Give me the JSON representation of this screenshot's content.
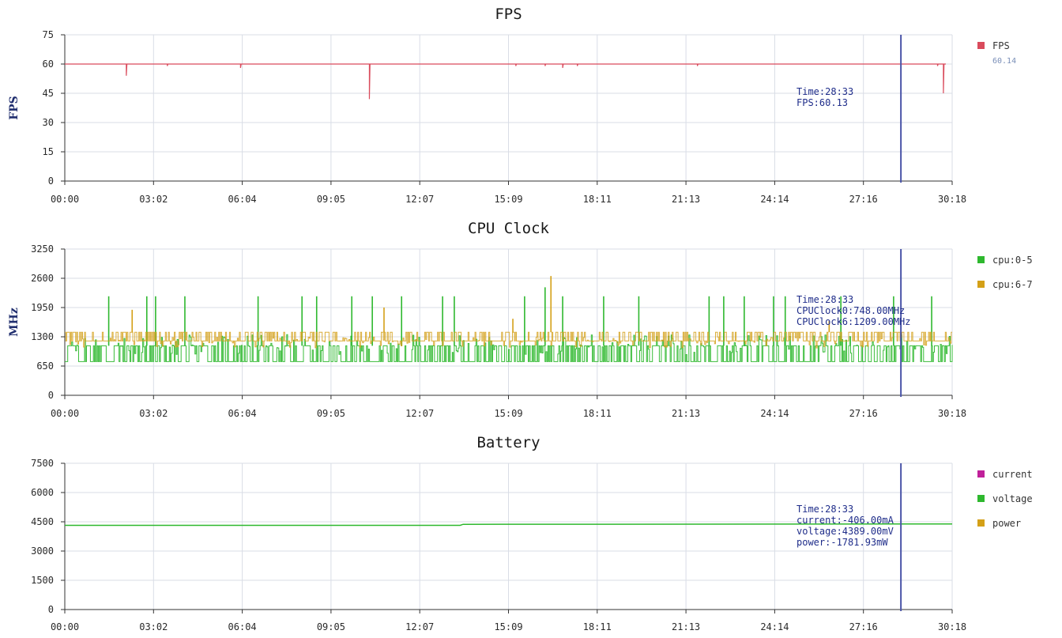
{
  "chart_data": [
    {
      "type": "line",
      "title": "FPS",
      "ylabel": "FPS",
      "ylim": [
        0,
        75
      ],
      "yticks": [
        "0",
        "15",
        "30",
        "45",
        "60",
        "75"
      ],
      "xticks": [
        "00:00",
        "03:02",
        "06:04",
        "09:05",
        "12:07",
        "15:09",
        "18:11",
        "21:13",
        "24:14",
        "27:16",
        "30:18"
      ],
      "x_range_min": [
        0,
        30.3
      ],
      "grid": true,
      "legend": "right",
      "series": [
        {
          "name": "FPS",
          "color": "#d94b5c",
          "baseline": 60,
          "dips": [
            [
              2.1,
              54
            ],
            [
              3.5,
              59
            ],
            [
              6.0,
              58
            ],
            [
              10.4,
              42
            ],
            [
              15.4,
              59
            ],
            [
              16.4,
              59
            ],
            [
              17.0,
              58
            ],
            [
              17.5,
              59
            ],
            [
              21.6,
              59
            ],
            [
              29.8,
              59
            ],
            [
              30.0,
              45
            ]
          ],
          "legend_value": "60.14"
        }
      ],
      "cursor": {
        "x_min": 28.55,
        "color": "#4a55a8",
        "lines": [
          "Time:28:33",
          "FPS:60.13"
        ]
      }
    },
    {
      "type": "line",
      "title": "CPU Clock",
      "ylabel": "MHz",
      "ylim": [
        0,
        3250
      ],
      "yticks": [
        "0",
        "650",
        "1300",
        "1950",
        "2600",
        "3250"
      ],
      "xticks": [
        "00:00",
        "03:02",
        "06:04",
        "09:05",
        "12:07",
        "15:09",
        "18:11",
        "21:13",
        "24:14",
        "27:16",
        "30:18"
      ],
      "x_range_min": [
        0,
        30.3
      ],
      "grid": true,
      "legend": "right",
      "series": [
        {
          "name": "cpu:0-5",
          "color": "#2eb82e",
          "low": 748,
          "high": 1100,
          "spikes": [
            [
              1.5,
              2200
            ],
            [
              2.8,
              2200
            ],
            [
              3.1,
              2200
            ],
            [
              4.1,
              2200
            ],
            [
              6.6,
              2200
            ],
            [
              8.1,
              2200
            ],
            [
              8.6,
              2200
            ],
            [
              9.8,
              2200
            ],
            [
              10.5,
              2200
            ],
            [
              11.5,
              2200
            ],
            [
              12.9,
              2200
            ],
            [
              13.3,
              2200
            ],
            [
              15.7,
              2200
            ],
            [
              16.4,
              2400
            ],
            [
              17.0,
              2200
            ],
            [
              18.4,
              2200
            ],
            [
              19.6,
              2200
            ],
            [
              22.0,
              2200
            ],
            [
              22.5,
              2200
            ],
            [
              23.2,
              2200
            ],
            [
              24.2,
              2200
            ],
            [
              24.6,
              2200
            ],
            [
              26.5,
              2200
            ],
            [
              28.3,
              2200
            ],
            [
              29.6,
              2200
            ]
          ]
        },
        {
          "name": "cpu:6-7",
          "color": "#d4a017",
          "low": 1209,
          "high": 1400,
          "spikes": [
            [
              2.3,
              1900
            ],
            [
              10.9,
              1950
            ],
            [
              15.3,
              1700
            ],
            [
              16.6,
              2650
            ],
            [
              26.1,
              1650
            ]
          ]
        }
      ],
      "cursor": {
        "x_min": 28.55,
        "color": "#4a55a8",
        "lines": [
          "Time:28:33",
          "CPUClock0:748.00MHz",
          "CPUClock6:1209.00MHz"
        ]
      }
    },
    {
      "type": "line",
      "title": "Battery",
      "ylim": [
        0,
        7500
      ],
      "yticks": [
        "0",
        "1500",
        "3000",
        "4500",
        "6000",
        "7500"
      ],
      "xticks": [
        "00:00",
        "03:02",
        "06:04",
        "09:05",
        "12:07",
        "15:09",
        "18:11",
        "21:13",
        "24:14",
        "27:16",
        "30:18"
      ],
      "x_range_min": [
        0,
        30.3
      ],
      "grid": true,
      "legend": "right",
      "series": [
        {
          "name": "current",
          "color": "#c0209a"
        },
        {
          "name": "voltage",
          "color": "#2eb82e",
          "points": [
            [
              0,
              4320
            ],
            [
              13.5,
              4320
            ],
            [
              13.6,
              4370
            ],
            [
              30.3,
              4389
            ]
          ]
        },
        {
          "name": "power",
          "color": "#d4a017"
        }
      ],
      "cursor": {
        "x_min": 28.55,
        "color": "#4a55a8",
        "lines": [
          "Time:28:33",
          "current:-406.00mA",
          "voltage:4389.00mV",
          "power:-1781.93mW"
        ]
      }
    }
  ]
}
